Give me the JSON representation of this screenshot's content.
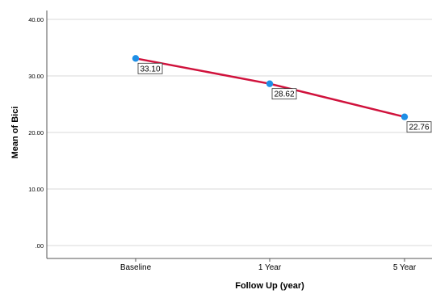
{
  "chart_data": {
    "type": "line",
    "categories": [
      "Baseline",
      "1 Year",
      "5 Year"
    ],
    "series": [
      {
        "values": [
          33.1,
          28.62,
          22.76
        ]
      }
    ],
    "data_labels": [
      "33.10",
      "28.62",
      "22.76"
    ],
    "xlabel": "Follow Up (year)",
    "ylabel": "Mean of Bici",
    "ylim": [
      0,
      40
    ],
    "yticks": [
      0,
      10,
      20,
      30,
      40
    ],
    "ytick_labels": [
      ".00",
      "10.00",
      "20.00",
      "30.00",
      "40.00"
    ],
    "grid": "horizontal",
    "colors": {
      "line": "#d0123c",
      "marker": "#1e8fe6",
      "grid": "#d9d9d9",
      "axis": "#555555"
    }
  }
}
